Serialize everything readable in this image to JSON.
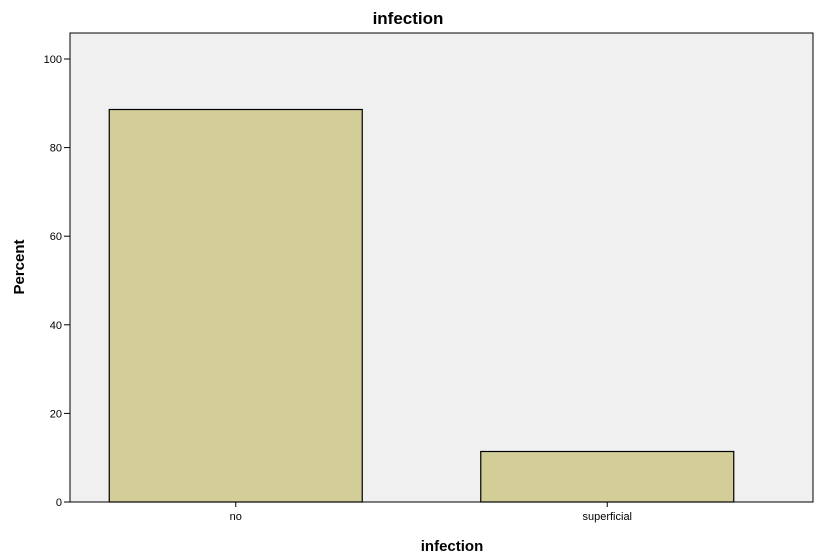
{
  "chart_data": {
    "type": "bar",
    "title": "infection",
    "xlabel": "infection",
    "ylabel": "Percent",
    "categories": [
      "no",
      "superficial"
    ],
    "values": [
      88.6,
      11.4
    ],
    "ylim": [
      0,
      100
    ],
    "yticks": [
      0,
      20,
      40,
      60,
      80,
      100
    ],
    "grid": false,
    "legend": "none"
  },
  "colors": {
    "plot_background": "#f0f0f0",
    "bar_fill": "#d3ce97",
    "bar_stroke": "#000000",
    "axis": "#000000"
  }
}
